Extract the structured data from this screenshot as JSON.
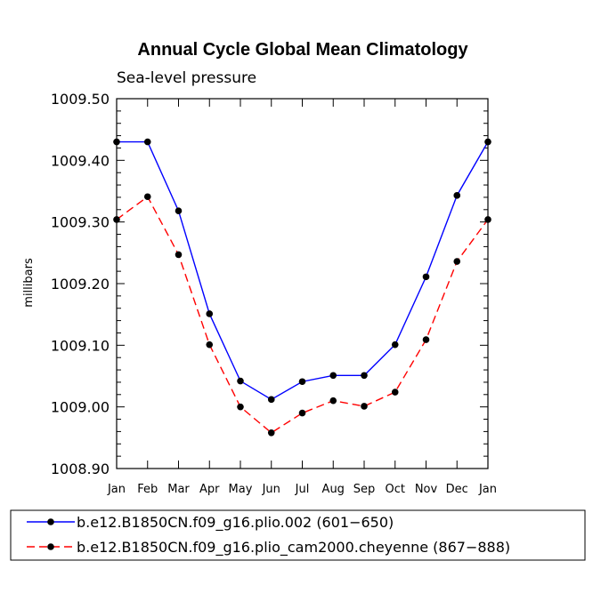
{
  "chart_data": {
    "type": "line",
    "title": "Annual Cycle Global Mean Climatology",
    "subtitle": "Sea-level pressure",
    "xlabel": "",
    "ylabel": "millibars",
    "ylim": [
      1008.9,
      1009.5
    ],
    "yticks": [
      "1009.50",
      "1009.40",
      "1009.30",
      "1009.20",
      "1009.10",
      "1009.00",
      "1008.90"
    ],
    "ytick_values": [
      1009.5,
      1009.4,
      1009.3,
      1009.2,
      1009.1,
      1009.0,
      1008.9
    ],
    "categories": [
      "Jan",
      "Feb",
      "Mar",
      "Apr",
      "May",
      "Jun",
      "Jul",
      "Aug",
      "Sep",
      "Oct",
      "Nov",
      "Dec",
      "Jan"
    ],
    "series": [
      {
        "name": "b.e12.B1850CN.f09_g16.plio.002 (601−650)",
        "color": "#0000ff",
        "dash": "solid",
        "values": [
          1009.43,
          1009.43,
          1009.318,
          1009.151,
          1009.042,
          1009.012,
          1009.041,
          1009.051,
          1009.051,
          1009.101,
          1009.211,
          1009.343,
          1009.43
        ]
      },
      {
        "name": "b.e12.B1850CN.f09_g16.plio_cam2000.cheyenne (867−888)",
        "color": "#ff0000",
        "dash": "dashed",
        "values": [
          1009.304,
          1009.341,
          1009.247,
          1009.101,
          1009.0,
          1008.958,
          1008.99,
          1009.01,
          1009.001,
          1009.024,
          1009.109,
          1009.236,
          1009.304
        ]
      }
    ],
    "legend_position": "bottom"
  }
}
